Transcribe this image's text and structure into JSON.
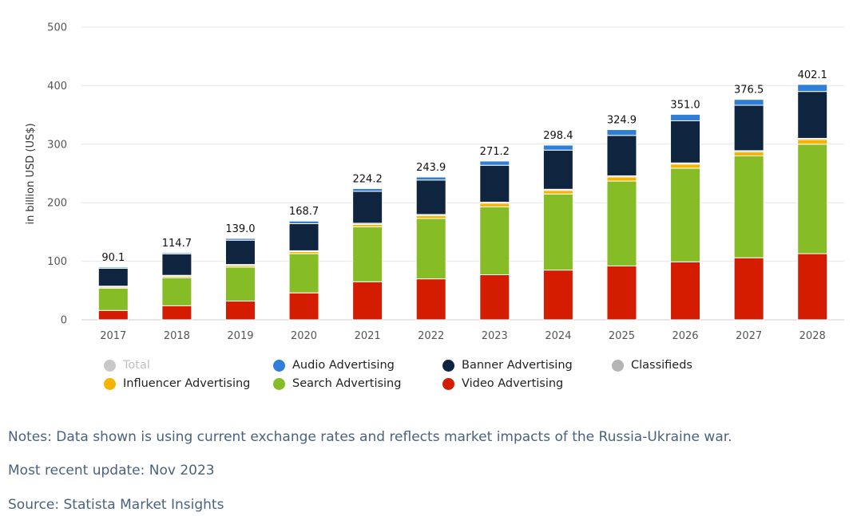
{
  "chart_data": {
    "type": "bar",
    "stacked": true,
    "categories": [
      "2017",
      "2018",
      "2019",
      "2020",
      "2021",
      "2022",
      "2023",
      "2024",
      "2025",
      "2026",
      "2027",
      "2028"
    ],
    "ylabel": "in billion USD (US$)",
    "ylim": [
      0,
      500
    ],
    "yticks": [
      0,
      100,
      200,
      300,
      400,
      500
    ],
    "grid": true,
    "legend_position": "bottom",
    "totals": [
      90.1,
      114.7,
      139.0,
      168.7,
      224.2,
      243.9,
      271.2,
      298.4,
      324.9,
      351.0,
      376.5,
      402.1
    ],
    "total_labels": [
      "90.1",
      "114.7",
      "139.0",
      "168.7",
      "224.2",
      "243.9",
      "271.2",
      "298.4",
      "324.9",
      "351.0",
      "376.5",
      "402.1"
    ],
    "series": [
      {
        "name": "Video Advertising",
        "color": "#d41c00",
        "values": [
          16,
          24,
          32,
          46,
          65,
          70,
          77,
          85,
          92,
          99,
          106,
          113
        ]
      },
      {
        "name": "Search Advertising",
        "color": "#86bc25",
        "values": [
          38,
          48,
          58,
          67,
          94,
          103,
          116,
          130,
          145,
          160,
          174,
          187
        ]
      },
      {
        "name": "Influencer Advertising",
        "color": "#f5b400",
        "values": [
          2,
          2.5,
          3,
          3.5,
          4,
          5,
          6,
          6,
          7,
          7,
          7,
          8
        ]
      },
      {
        "name": "Classifieds",
        "color": "#b4b4b4",
        "values": [
          1.5,
          1.5,
          1.5,
          1.5,
          2,
          2,
          2,
          2,
          2,
          2,
          2,
          2
        ]
      },
      {
        "name": "Banner Advertising",
        "color": "#0f253f",
        "values": [
          30.6,
          36.7,
          41.5,
          46.2,
          54.5,
          58.8,
          63,
          66.9,
          69,
          72,
          77.5,
          80.1
        ]
      },
      {
        "name": "Audio Advertising",
        "color": "#2f7ed8",
        "values": [
          2,
          2,
          3,
          4.5,
          4.7,
          5.1,
          7.2,
          8.5,
          9.9,
          11,
          10,
          12
        ]
      }
    ],
    "total_series": {
      "name": "Total",
      "color": "#c8c8c8"
    }
  },
  "legend": [
    {
      "label": "Total",
      "color": "#c8c8c8",
      "muted": true
    },
    {
      "label": "Audio Advertising",
      "color": "#2f7ed8",
      "muted": false
    },
    {
      "label": "Banner Advertising",
      "color": "#0f253f",
      "muted": false
    },
    {
      "label": "Classifieds",
      "color": "#b4b4b4",
      "muted": false
    },
    {
      "label": "Influencer Advertising",
      "color": "#f5b400",
      "muted": false
    },
    {
      "label": "Search Advertising",
      "color": "#86bc25",
      "muted": false
    },
    {
      "label": "Video Advertising",
      "color": "#d41c00",
      "muted": false
    }
  ],
  "footer": {
    "notes": "Notes: Data shown is using current exchange rates and reflects market impacts of the Russia-Ukraine war.",
    "update": "Most recent update: Nov 2023",
    "source": "Source: Statista Market Insights"
  }
}
